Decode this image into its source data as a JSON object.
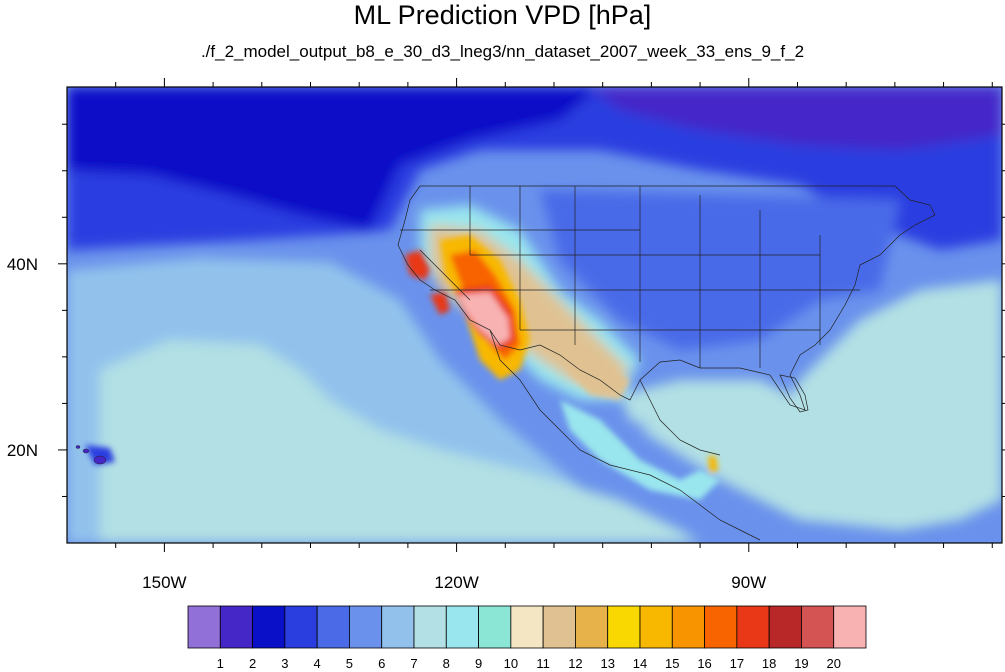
{
  "chart_data": {
    "type": "heatmap",
    "title": "ML Prediction VPD [hPa]",
    "subtitle": "./f_2_model_output_b8_e_30_d3_lneg3/nn_dataset_2007_week_33_ens_9_f_2",
    "map_extent": {
      "lon": [
        -160,
        -64
      ],
      "lat": [
        10,
        59
      ]
    },
    "x_ticks": [
      {
        "lon": -150,
        "label": "150W"
      },
      {
        "lon": -120,
        "label": "120W"
      },
      {
        "lon": -90,
        "label": "90W"
      }
    ],
    "y_ticks": [
      {
        "lat": 40,
        "label": "40N"
      },
      {
        "lat": 20,
        "label": "20N"
      }
    ],
    "colorbar": {
      "levels": [
        "1",
        "2",
        "3",
        "4",
        "5",
        "6",
        "7",
        "8",
        "9",
        "10",
        "11",
        "12",
        "13",
        "14",
        "15",
        "16",
        "17",
        "18",
        "19",
        "20"
      ],
      "colors": [
        "#9170d8",
        "#4527c8",
        "#0a10c8",
        "#2a3ee0",
        "#4a6ae8",
        "#6a92ec",
        "#92c2ec",
        "#b2e0e4",
        "#9ae6ee",
        "#8ce6d6",
        "#f4e6c2",
        "#e0c292",
        "#e8b24a",
        "#f8d800",
        "#f8b800",
        "#f89400",
        "#f86400",
        "#e83818",
        "#b82828",
        "#d45454",
        "#f8b2b2"
      ]
    },
    "regions": [
      {
        "name": "ocean-north",
        "level_color": "#2a3ee0"
      },
      {
        "name": "pacific-subtropics",
        "level_color": "#b2e0e4"
      },
      {
        "name": "southwest-max",
        "level_color": "#f8b2b2"
      }
    ]
  }
}
